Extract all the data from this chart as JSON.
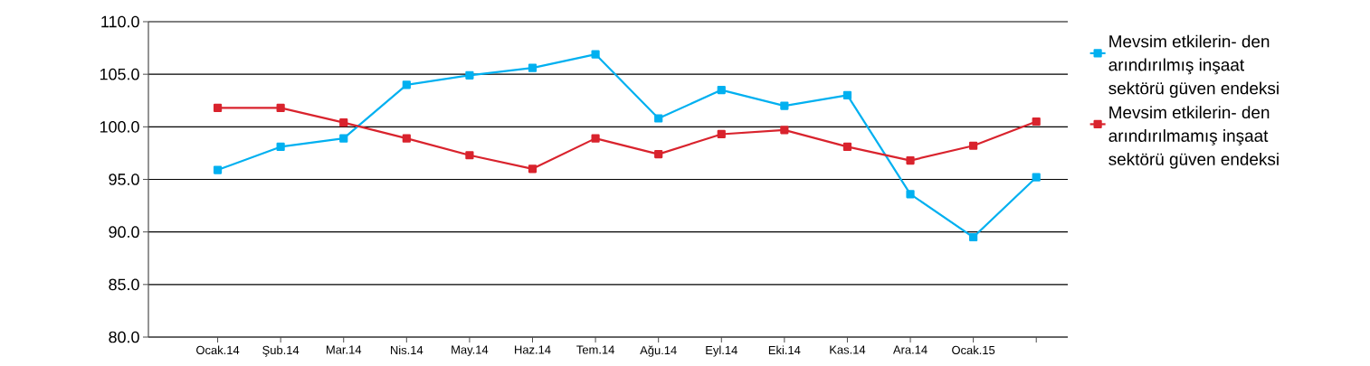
{
  "chart_data": {
    "type": "line",
    "categories": [
      "Ocak.14",
      "Şub.14",
      "Mar.14",
      "Nis.14",
      "May.14",
      "Haz.14",
      "Tem.14",
      "Ağu.14",
      "Eyl.14",
      "Eki.14",
      "Kas.14",
      "Ara.14",
      "Ocak.15",
      null
    ],
    "series": [
      {
        "name": "Mevsim etkilerin- den arındırılmış inşaat sektörü güven endeksi",
        "color": "#00b0f0",
        "values": [
          95.9,
          98.1,
          98.9,
          104.0,
          104.9,
          105.6,
          106.9,
          100.8,
          103.5,
          102.0,
          103.0,
          93.6,
          89.5,
          95.2
        ]
      },
      {
        "name": "Mevsim etkilerin- den arındırılmamış inşaat sektörü güven endeksi",
        "color": "#d9232d",
        "values": [
          101.8,
          101.8,
          100.4,
          98.9,
          97.3,
          96.0,
          98.9,
          97.4,
          99.3,
          99.7,
          98.1,
          96.8,
          98.2,
          100.5
        ]
      }
    ],
    "ylim": [
      80,
      110
    ],
    "yticks": [
      {
        "value": 80,
        "label": "80.0"
      },
      {
        "value": 85,
        "label": "85.0"
      },
      {
        "value": 90,
        "label": "90.0"
      },
      {
        "value": 95,
        "label": "95.0"
      },
      {
        "value": 100,
        "label": "100.0"
      },
      {
        "value": 105,
        "label": "105.0"
      },
      {
        "value": 110,
        "label": "110.0"
      }
    ],
    "grid": "y",
    "legend": "right",
    "marker": "square",
    "line_style": "solid"
  }
}
